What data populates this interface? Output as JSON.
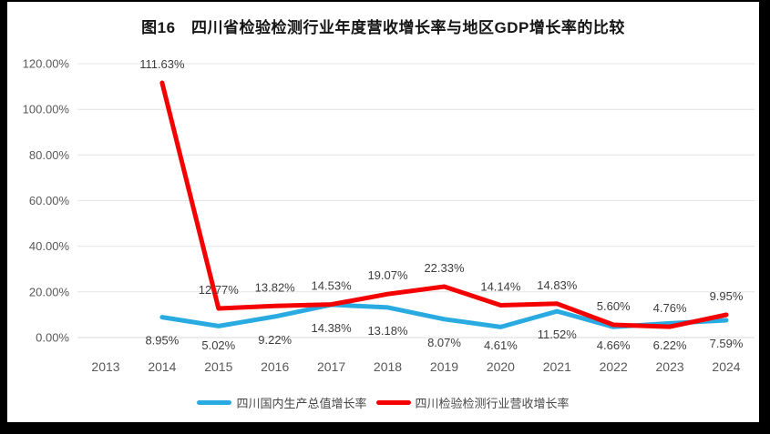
{
  "chart_data": {
    "type": "line",
    "title": "图16　四川省检验检测行业年度营收增长率与地区GDP增长率的比较",
    "categories": [
      "2013",
      "2014",
      "2015",
      "2016",
      "2017",
      "2018",
      "2019",
      "2020",
      "2021",
      "2022",
      "2023",
      "2024"
    ],
    "ylim": [
      0,
      120
    ],
    "grid": true,
    "legend_position": "bottom",
    "y_ticks": [
      {
        "value": 0,
        "label": "0.00%"
      },
      {
        "value": 20,
        "label": "20.00%"
      },
      {
        "value": 40,
        "label": "40.00%"
      },
      {
        "value": 60,
        "label": "60.00%"
      },
      {
        "value": 80,
        "label": "80.00%"
      },
      {
        "value": 100,
        "label": "100.00%"
      },
      {
        "value": 120,
        "label": "120.00%"
      }
    ],
    "series": [
      {
        "name": "四川国内生产总值增长率",
        "color": "#29abe2",
        "label_position": "below",
        "values": [
          null,
          8.95,
          5.02,
          9.22,
          14.38,
          13.18,
          8.07,
          4.61,
          11.52,
          4.66,
          6.22,
          7.59
        ],
        "labels": [
          null,
          "8.95%",
          "5.02%",
          "9.22%",
          "14.38%",
          "13.18%",
          "8.07%",
          "4.61%",
          "11.52%",
          "4.66%",
          "6.22%",
          "7.59%"
        ]
      },
      {
        "name": "四川检验检测行业营收增长率",
        "color": "#f40000",
        "label_position": "above",
        "values": [
          null,
          111.63,
          12.77,
          13.82,
          14.53,
          19.07,
          22.33,
          14.14,
          14.83,
          5.6,
          4.76,
          9.95
        ],
        "labels": [
          null,
          "111.63%",
          "12.77%",
          "13.82%",
          "14.53%",
          "19.07%",
          "22.33%",
          "14.14%",
          "14.83%",
          "5.60%",
          "4.76%",
          "9.95%"
        ]
      }
    ]
  }
}
